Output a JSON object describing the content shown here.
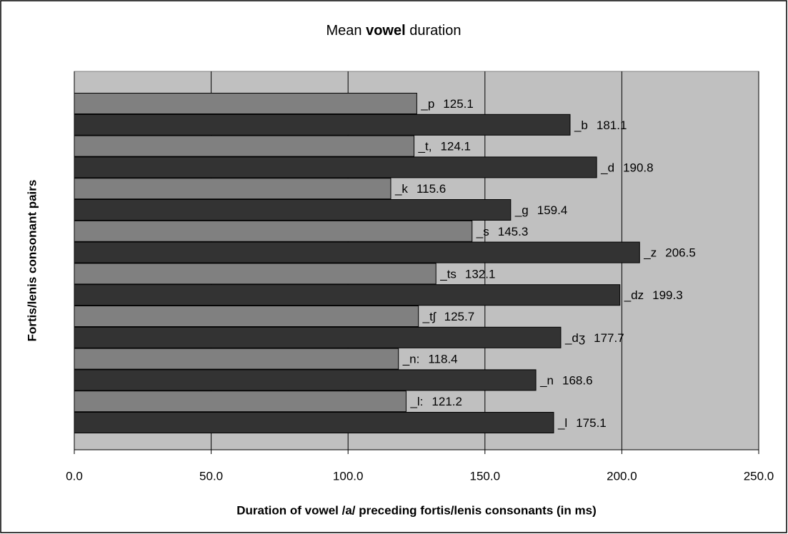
{
  "chart_data": {
    "type": "bar",
    "orientation": "horizontal",
    "title": [
      "Mean",
      "vowel",
      "duration"
    ],
    "xlabel": "Duration of vowel /a/ preceding fortis/lenis consonants (in ms)",
    "ylabel": "Fortis/lenis consonant pairs",
    "categories": [
      "_p",
      "_b",
      "_t,",
      "_d",
      "_k",
      "_g",
      "_s",
      "_z",
      "_ts",
      "_dz",
      "_tʃ",
      "_dʒ",
      "_n:",
      "_n",
      "_l:",
      "_l"
    ],
    "values": [
      125.1,
      181.1,
      124.1,
      190.8,
      115.6,
      159.4,
      145.3,
      206.5,
      132.1,
      199.3,
      125.7,
      177.7,
      118.4,
      168.6,
      121.2,
      175.1
    ],
    "colors": [
      "#808080",
      "#333333",
      "#808080",
      "#333333",
      "#808080",
      "#333333",
      "#808080",
      "#333333",
      "#808080",
      "#333333",
      "#808080",
      "#333333",
      "#808080",
      "#333333",
      "#808080",
      "#333333"
    ],
    "xlim": [
      0,
      250
    ],
    "xticks": [
      {
        "value": 0,
        "label": "0.0"
      },
      {
        "value": 50,
        "label": "50.0"
      },
      {
        "value": 100,
        "label": "100.0"
      },
      {
        "value": 150,
        "label": "150.0"
      },
      {
        "value": 200,
        "label": "200.0"
      },
      {
        "value": 250,
        "label": "250.0"
      }
    ],
    "grid": true,
    "background": "#c0c0c0"
  }
}
